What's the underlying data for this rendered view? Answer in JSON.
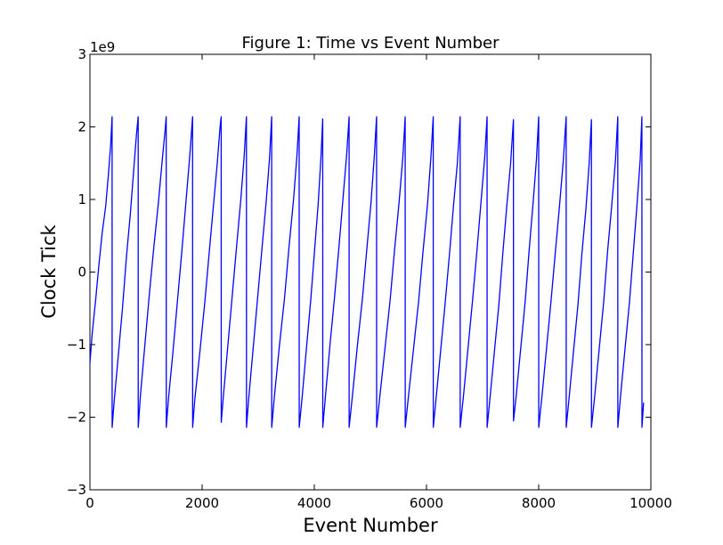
{
  "chart_data": {
    "type": "line",
    "title": "Figure 1: Time vs Event Number",
    "xlabel": "Event Number",
    "ylabel": "Clock Tick",
    "y_offset_label": "1e9",
    "xlim": [
      0,
      10000
    ],
    "ylim": [
      -3,
      3
    ],
    "y_unit_multiplier": 1000000000,
    "grid": false,
    "line_color": "#0000ff",
    "x_ticks": [
      {
        "value": 0,
        "label": "0"
      },
      {
        "value": 2000,
        "label": "2000"
      },
      {
        "value": 4000,
        "label": "4000"
      },
      {
        "value": 6000,
        "label": "6000"
      },
      {
        "value": 8000,
        "label": "8000"
      },
      {
        "value": 10000,
        "label": "10000"
      }
    ],
    "y_ticks": [
      {
        "value": -3,
        "label": "−3"
      },
      {
        "value": -2,
        "label": "−2"
      },
      {
        "value": -1,
        "label": "−1"
      },
      {
        "value": 0,
        "label": "0"
      },
      {
        "value": 1,
        "label": "1"
      },
      {
        "value": 2,
        "label": "2"
      },
      {
        "value": 3,
        "label": "3"
      }
    ],
    "series": [
      {
        "points": [
          [
            0,
            -1.25
          ],
          [
            40,
            -0.85
          ],
          [
            100,
            -0.4
          ],
          [
            160,
            0.1
          ],
          [
            220,
            0.55
          ],
          [
            280,
            0.9
          ],
          [
            330,
            1.35
          ],
          [
            370,
            1.75
          ],
          [
            395,
            2.14
          ],
          [
            396,
            -2.14
          ],
          [
            430,
            -1.8
          ],
          [
            500,
            -1.2
          ],
          [
            580,
            -0.5
          ],
          [
            650,
            0.2
          ],
          [
            720,
            0.8
          ],
          [
            780,
            1.4
          ],
          [
            830,
            1.9
          ],
          [
            860,
            2.14
          ],
          [
            861,
            -2.14
          ],
          [
            900,
            -1.7
          ],
          [
            980,
            -1.0
          ],
          [
            1060,
            -0.3
          ],
          [
            1140,
            0.35
          ],
          [
            1220,
            0.95
          ],
          [
            1290,
            1.55
          ],
          [
            1340,
            1.95
          ],
          [
            1360,
            2.14
          ],
          [
            1361,
            -2.14
          ],
          [
            1400,
            -1.75
          ],
          [
            1480,
            -1.1
          ],
          [
            1560,
            -0.4
          ],
          [
            1640,
            0.3
          ],
          [
            1710,
            0.95
          ],
          [
            1780,
            1.6
          ],
          [
            1830,
            2.14
          ],
          [
            1831,
            -2.14
          ],
          [
            1870,
            -1.75
          ],
          [
            1960,
            -1.1
          ],
          [
            2050,
            -0.4
          ],
          [
            2130,
            0.3
          ],
          [
            2200,
            0.9
          ],
          [
            2270,
            1.5
          ],
          [
            2320,
            2.0
          ],
          [
            2340,
            2.14
          ],
          [
            2341,
            -2.07
          ],
          [
            2380,
            -1.7
          ],
          [
            2460,
            -1.0
          ],
          [
            2540,
            -0.3
          ],
          [
            2620,
            0.4
          ],
          [
            2690,
            1.0
          ],
          [
            2750,
            1.6
          ],
          [
            2790,
            2.14
          ],
          [
            2791,
            -2.14
          ],
          [
            2830,
            -1.75
          ],
          [
            2910,
            -1.05
          ],
          [
            2990,
            -0.35
          ],
          [
            3070,
            0.35
          ],
          [
            3140,
            0.95
          ],
          [
            3200,
            1.55
          ],
          [
            3240,
            2.14
          ],
          [
            3241,
            -2.14
          ],
          [
            3290,
            -1.7
          ],
          [
            3380,
            -1.0
          ],
          [
            3470,
            -0.35
          ],
          [
            3550,
            0.35
          ],
          [
            3630,
            1.0
          ],
          [
            3690,
            1.6
          ],
          [
            3730,
            2.14
          ],
          [
            3731,
            -2.14
          ],
          [
            3780,
            -1.75
          ],
          [
            3860,
            -1.05
          ],
          [
            3940,
            -0.35
          ],
          [
            4010,
            0.35
          ],
          [
            4070,
            0.95
          ],
          [
            4120,
            1.6
          ],
          [
            4150,
            2.11
          ],
          [
            4151,
            -2.14
          ],
          [
            4200,
            -1.7
          ],
          [
            4280,
            -1.0
          ],
          [
            4360,
            -0.35
          ],
          [
            4440,
            0.35
          ],
          [
            4510,
            1.0
          ],
          [
            4580,
            1.65
          ],
          [
            4620,
            2.14
          ],
          [
            4621,
            -2.14
          ],
          [
            4680,
            -1.7
          ],
          [
            4770,
            -1.0
          ],
          [
            4860,
            -0.35
          ],
          [
            4940,
            0.35
          ],
          [
            5010,
            0.95
          ],
          [
            5070,
            1.6
          ],
          [
            5110,
            2.14
          ],
          [
            5111,
            -2.14
          ],
          [
            5170,
            -1.7
          ],
          [
            5260,
            -1.05
          ],
          [
            5350,
            -0.4
          ],
          [
            5430,
            0.3
          ],
          [
            5510,
            0.95
          ],
          [
            5580,
            1.6
          ],
          [
            5620,
            2.14
          ],
          [
            5621,
            -2.14
          ],
          [
            5680,
            -1.7
          ],
          [
            5770,
            -1.05
          ],
          [
            5860,
            -0.4
          ],
          [
            5940,
            0.3
          ],
          [
            6020,
            0.95
          ],
          [
            6080,
            1.6
          ],
          [
            6120,
            2.14
          ],
          [
            6121,
            -2.14
          ],
          [
            6170,
            -1.75
          ],
          [
            6250,
            -1.1
          ],
          [
            6330,
            -0.45
          ],
          [
            6410,
            0.25
          ],
          [
            6480,
            0.9
          ],
          [
            6550,
            1.5
          ],
          [
            6600,
            2.14
          ],
          [
            6601,
            -2.14
          ],
          [
            6660,
            -1.7
          ],
          [
            6740,
            -1.05
          ],
          [
            6820,
            -0.4
          ],
          [
            6900,
            0.3
          ],
          [
            6970,
            0.95
          ],
          [
            7040,
            1.6
          ],
          [
            7080,
            2.14
          ],
          [
            7081,
            -2.14
          ],
          [
            7130,
            -1.75
          ],
          [
            7210,
            -1.1
          ],
          [
            7290,
            -0.45
          ],
          [
            7360,
            0.25
          ],
          [
            7430,
            0.9
          ],
          [
            7500,
            1.5
          ],
          [
            7550,
            2.1
          ],
          [
            7551,
            -2.05
          ],
          [
            7600,
            -1.7
          ],
          [
            7680,
            -1.05
          ],
          [
            7760,
            -0.4
          ],
          [
            7830,
            0.3
          ],
          [
            7900,
            0.95
          ],
          [
            7960,
            1.55
          ],
          [
            8000,
            2.14
          ],
          [
            8001,
            -2.14
          ],
          [
            8060,
            -1.7
          ],
          [
            8140,
            -1.05
          ],
          [
            8220,
            -0.4
          ],
          [
            8300,
            0.3
          ],
          [
            8370,
            0.9
          ],
          [
            8440,
            1.55
          ],
          [
            8490,
            2.14
          ],
          [
            8491,
            -2.14
          ],
          [
            8540,
            -1.75
          ],
          [
            8620,
            -1.1
          ],
          [
            8700,
            -0.45
          ],
          [
            8770,
            0.25
          ],
          [
            8840,
            0.85
          ],
          [
            8900,
            1.5
          ],
          [
            8940,
            2.1
          ],
          [
            8941,
            -2.14
          ],
          [
            9000,
            -1.7
          ],
          [
            9080,
            -1.05
          ],
          [
            9160,
            -0.4
          ],
          [
            9230,
            0.3
          ],
          [
            9300,
            0.9
          ],
          [
            9370,
            1.55
          ],
          [
            9410,
            2.14
          ],
          [
            9411,
            -2.14
          ],
          [
            9460,
            -1.7
          ],
          [
            9540,
            -1.05
          ],
          [
            9620,
            -0.4
          ],
          [
            9690,
            0.3
          ],
          [
            9750,
            0.9
          ],
          [
            9810,
            1.55
          ],
          [
            9840,
            2.14
          ],
          [
            9841,
            -2.14
          ],
          [
            9870,
            -1.8
          ]
        ]
      }
    ]
  }
}
